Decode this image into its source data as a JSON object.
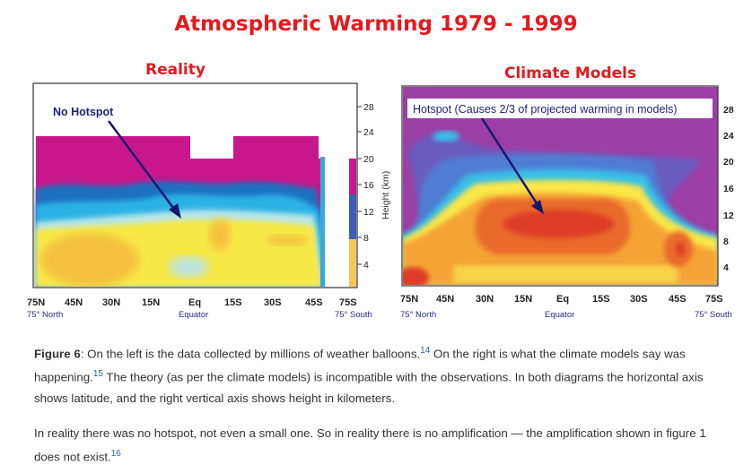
{
  "figure": {
    "title": "Atmospheric Warming 1979 - 1999",
    "left_panel": {
      "title": "Reality",
      "annotation": "No Hotspot",
      "y_ticks": [
        "28",
        "24",
        "20",
        "16",
        "12",
        "8",
        "4"
      ],
      "x_ticks": [
        "75N",
        "45N",
        "30N",
        "15N",
        "Eq",
        "15S",
        "30S",
        "45S",
        "75S"
      ],
      "x_sublabels": [
        "75° North",
        "Equator",
        "75° South"
      ]
    },
    "right_panel": {
      "title": "Climate Models",
      "annotation": "Hotspot (Causes 2/3 of projected warming in models)",
      "y_axis_label": "Height (km)",
      "y_ticks": [
        "28",
        "24",
        "20",
        "16",
        "12",
        "8",
        "4"
      ],
      "x_ticks": [
        "75N",
        "45N",
        "30N",
        "15N",
        "Eq",
        "15S",
        "30S",
        "45S",
        "75S"
      ],
      "x_sublabels": [
        "75° North",
        "Equator",
        "75° South"
      ]
    },
    "colors": {
      "title": "#e4191f",
      "annotation": "#1f1f7a",
      "magenta": "#c8168c",
      "purple": "#9b3fa6",
      "yellow": "#f9e64a",
      "orange": "#f5a335",
      "red": "#e0412a"
    }
  },
  "caption": {
    "label": "Figure 6",
    "p1_a": ": On the left is the data collected by millions of weather balloons.",
    "ref1": "14",
    "p1_b": " On the right is what the climate models say was happening.",
    "ref2": "15",
    "p1_c": " The theory (as per the climate models) is incompatible with the observations. In both diagrams the horizontal axis shows latitude, and the right vertical axis shows height in kilometers.",
    "p2": "In reality there was no hotspot, not even a small one. So in reality there is no amplification — the amplification shown in figure 1 does not exist.",
    "ref3": "16"
  }
}
